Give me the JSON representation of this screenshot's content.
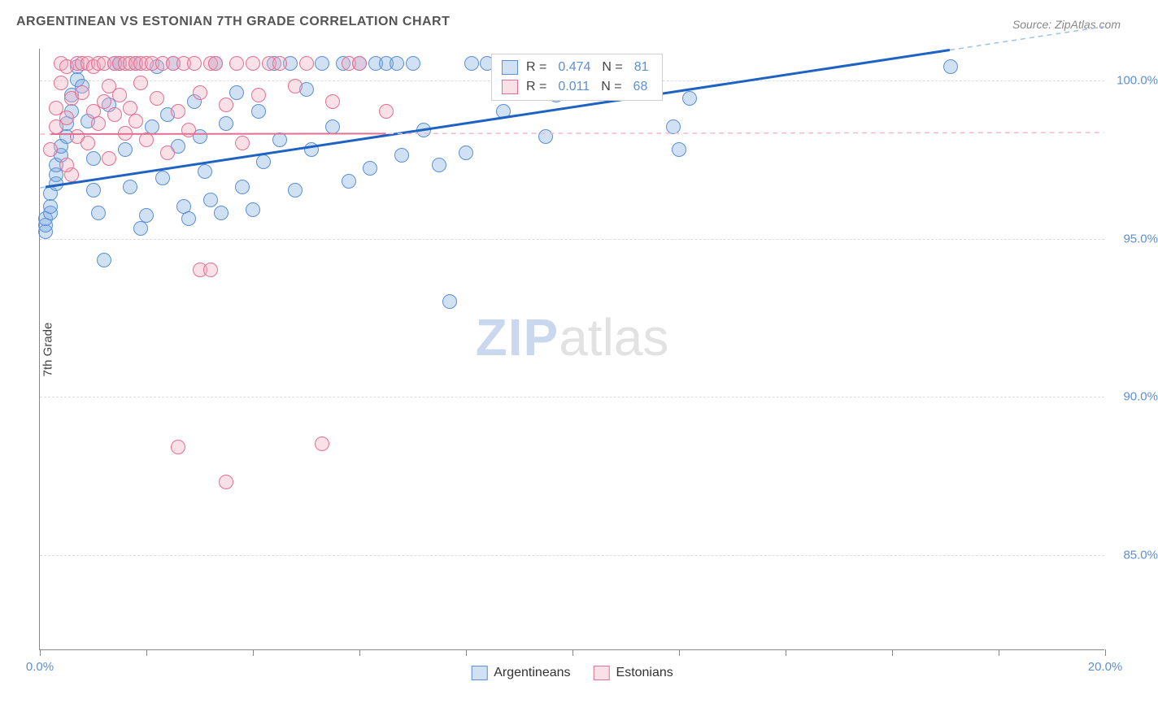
{
  "title": "ARGENTINEAN VS ESTONIAN 7TH GRADE CORRELATION CHART",
  "source": "Source: ZipAtlas.com",
  "ylabel": "7th Grade",
  "watermark_zip": "ZIP",
  "watermark_atlas": "atlas",
  "chart": {
    "type": "scatter",
    "xlim": [
      0,
      20
    ],
    "ylim": [
      82,
      101
    ],
    "x_ticks": [
      0,
      2,
      4,
      6,
      8,
      10,
      12,
      14,
      16,
      18,
      20
    ],
    "x_tick_labels": {
      "0": "0.0%",
      "20": "20.0%"
    },
    "y_grid": [
      85,
      90,
      95,
      100
    ],
    "y_tick_labels": {
      "85": "85.0%",
      "90": "90.0%",
      "95": "95.0%",
      "100": "100.0%"
    },
    "background_color": "#ffffff",
    "grid_color": "#dddddd",
    "axis_color": "#888888",
    "tick_label_color": "#5b8fd6",
    "marker_radius": 9,
    "marker_stroke_width": 1.2,
    "series": [
      {
        "name": "Argentineans",
        "fill": "rgba(120,168,224,0.35)",
        "stroke": "#5b8fd6",
        "R": "0.474",
        "N": "81",
        "trend": {
          "solid_color": "#1e63c4",
          "solid_width": 3,
          "dash_color": "#9fc1ea",
          "y_at_x0": 96.6,
          "y_at_x20": 101.7
        },
        "points": [
          [
            0.1,
            95.2
          ],
          [
            0.1,
            95.4
          ],
          [
            0.1,
            95.6
          ],
          [
            0.2,
            95.8
          ],
          [
            0.2,
            96.0
          ],
          [
            0.2,
            96.4
          ],
          [
            0.3,
            96.7
          ],
          [
            0.3,
            97.0
          ],
          [
            0.3,
            97.3
          ],
          [
            0.4,
            97.6
          ],
          [
            0.4,
            97.9
          ],
          [
            0.5,
            98.2
          ],
          [
            0.5,
            98.6
          ],
          [
            0.6,
            99.0
          ],
          [
            0.6,
            99.5
          ],
          [
            0.7,
            100.0
          ],
          [
            0.7,
            100.4
          ],
          [
            0.8,
            99.8
          ],
          [
            0.9,
            98.7
          ],
          [
            1.0,
            97.5
          ],
          [
            1.0,
            96.5
          ],
          [
            1.1,
            95.8
          ],
          [
            1.2,
            94.3
          ],
          [
            1.3,
            99.2
          ],
          [
            1.4,
            100.5
          ],
          [
            1.5,
            100.5
          ],
          [
            1.6,
            97.8
          ],
          [
            1.7,
            96.6
          ],
          [
            1.8,
            100.5
          ],
          [
            1.9,
            95.3
          ],
          [
            2.0,
            95.7
          ],
          [
            2.1,
            98.5
          ],
          [
            2.2,
            100.4
          ],
          [
            2.3,
            96.9
          ],
          [
            2.4,
            98.9
          ],
          [
            2.5,
            100.5
          ],
          [
            2.6,
            97.9
          ],
          [
            2.7,
            96.0
          ],
          [
            2.8,
            95.6
          ],
          [
            2.9,
            99.3
          ],
          [
            3.0,
            98.2
          ],
          [
            3.1,
            97.1
          ],
          [
            3.2,
            96.2
          ],
          [
            3.3,
            100.5
          ],
          [
            3.4,
            95.8
          ],
          [
            3.5,
            98.6
          ],
          [
            3.7,
            99.6
          ],
          [
            3.8,
            96.6
          ],
          [
            4.0,
            95.9
          ],
          [
            4.1,
            99.0
          ],
          [
            4.2,
            97.4
          ],
          [
            4.4,
            100.5
          ],
          [
            4.5,
            98.1
          ],
          [
            4.7,
            100.5
          ],
          [
            4.8,
            96.5
          ],
          [
            5.0,
            99.7
          ],
          [
            5.1,
            97.8
          ],
          [
            5.3,
            100.5
          ],
          [
            5.5,
            98.5
          ],
          [
            5.7,
            100.5
          ],
          [
            5.8,
            96.8
          ],
          [
            6.0,
            100.5
          ],
          [
            6.2,
            97.2
          ],
          [
            6.3,
            100.5
          ],
          [
            6.5,
            100.5
          ],
          [
            6.7,
            100.5
          ],
          [
            6.8,
            97.6
          ],
          [
            7.0,
            100.5
          ],
          [
            7.2,
            98.4
          ],
          [
            7.5,
            97.3
          ],
          [
            7.7,
            93.0
          ],
          [
            8.0,
            97.7
          ],
          [
            8.1,
            100.5
          ],
          [
            8.4,
            100.5
          ],
          [
            8.7,
            99.0
          ],
          [
            9.5,
            98.2
          ],
          [
            9.7,
            99.5
          ],
          [
            11.9,
            98.5
          ],
          [
            12.0,
            97.8
          ],
          [
            12.2,
            99.4
          ],
          [
            17.1,
            100.4
          ]
        ]
      },
      {
        "name": "Estonians",
        "fill": "rgba(241,170,190,0.35)",
        "stroke": "#e36f92",
        "R": "0.011",
        "N": "68",
        "trend": {
          "solid_color": "#e36f92",
          "solid_width": 2,
          "dash_color": "#f2b9c9",
          "y_at_x0": 98.3,
          "y_at_x20": 98.35
        },
        "points": [
          [
            0.2,
            97.8
          ],
          [
            0.3,
            98.5
          ],
          [
            0.3,
            99.1
          ],
          [
            0.4,
            99.9
          ],
          [
            0.4,
            100.5
          ],
          [
            0.5,
            98.8
          ],
          [
            0.5,
            100.4
          ],
          [
            0.6,
            97.0
          ],
          [
            0.6,
            99.4
          ],
          [
            0.7,
            100.5
          ],
          [
            0.7,
            98.2
          ],
          [
            0.8,
            100.5
          ],
          [
            0.8,
            99.6
          ],
          [
            0.9,
            98.0
          ],
          [
            0.9,
            100.5
          ],
          [
            1.0,
            99.0
          ],
          [
            1.0,
            100.4
          ],
          [
            1.1,
            98.6
          ],
          [
            1.1,
            100.5
          ],
          [
            1.2,
            99.3
          ],
          [
            1.2,
            100.5
          ],
          [
            1.3,
            97.5
          ],
          [
            1.3,
            99.8
          ],
          [
            1.4,
            100.5
          ],
          [
            1.4,
            98.9
          ],
          [
            1.5,
            100.5
          ],
          [
            1.5,
            99.5
          ],
          [
            1.6,
            100.5
          ],
          [
            1.6,
            98.3
          ],
          [
            1.7,
            100.5
          ],
          [
            1.7,
            99.1
          ],
          [
            1.8,
            100.5
          ],
          [
            1.8,
            98.7
          ],
          [
            1.9,
            100.5
          ],
          [
            1.9,
            99.9
          ],
          [
            2.0,
            100.5
          ],
          [
            2.0,
            98.1
          ],
          [
            2.1,
            100.5
          ],
          [
            2.2,
            99.4
          ],
          [
            2.3,
            100.5
          ],
          [
            2.4,
            97.7
          ],
          [
            2.5,
            100.5
          ],
          [
            2.6,
            99.0
          ],
          [
            2.7,
            100.5
          ],
          [
            2.8,
            98.4
          ],
          [
            2.9,
            100.5
          ],
          [
            3.0,
            94.0
          ],
          [
            3.0,
            99.6
          ],
          [
            3.2,
            100.5
          ],
          [
            3.2,
            94.0
          ],
          [
            3.3,
            100.5
          ],
          [
            3.5,
            99.2
          ],
          [
            3.5,
            87.3
          ],
          [
            3.7,
            100.5
          ],
          [
            3.8,
            98.0
          ],
          [
            4.0,
            100.5
          ],
          [
            4.1,
            99.5
          ],
          [
            4.3,
            100.5
          ],
          [
            4.5,
            100.5
          ],
          [
            4.8,
            99.8
          ],
          [
            5.0,
            100.5
          ],
          [
            5.3,
            88.5
          ],
          [
            5.5,
            99.3
          ],
          [
            5.8,
            100.5
          ],
          [
            6.0,
            100.5
          ],
          [
            6.5,
            99.0
          ],
          [
            2.6,
            88.4
          ],
          [
            0.5,
            97.3
          ]
        ]
      }
    ]
  },
  "legend": {
    "r_label": "R =",
    "n_label": "N ="
  },
  "bottom_legend": {
    "s1": "Argentineans",
    "s2": "Estonians"
  }
}
